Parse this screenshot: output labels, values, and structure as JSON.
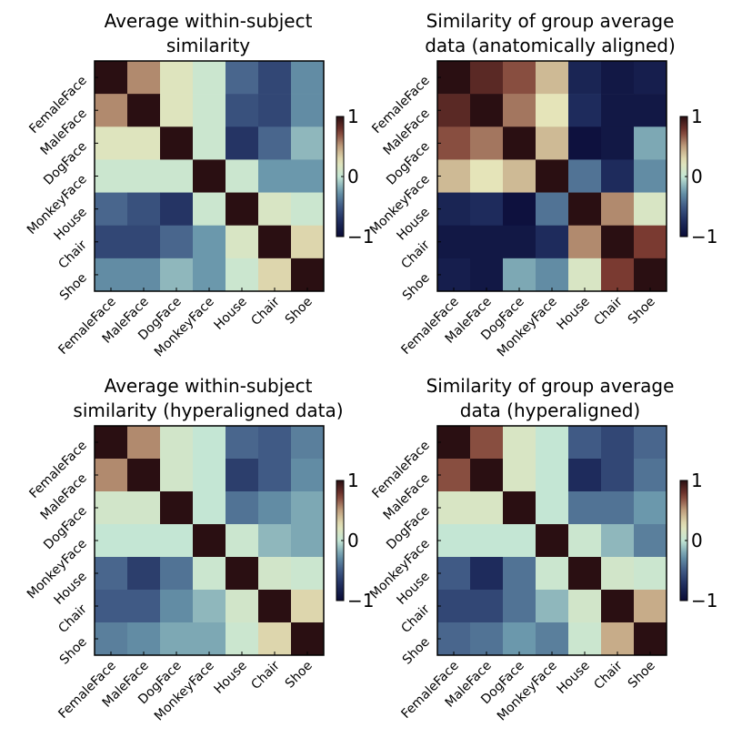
{
  "chart_data": [
    {
      "type": "heatmap",
      "title": [
        "Average within-subject",
        "similarity"
      ],
      "rows": [
        "FemaleFace",
        "MaleFace",
        "DogFace",
        "MonkeyFace",
        "House",
        "Chair",
        "Shoe"
      ],
      "cols": [
        "FemaleFace",
        "MaleFace",
        "DogFace",
        "MonkeyFace",
        "House",
        "Chair",
        "Shoe"
      ],
      "values": [
        [
          1.0,
          0.55,
          0.2,
          0.05,
          -0.45,
          -0.6,
          -0.3
        ],
        [
          0.55,
          1.0,
          0.2,
          0.05,
          -0.55,
          -0.6,
          -0.3
        ],
        [
          0.2,
          0.2,
          1.0,
          0.05,
          -0.7,
          -0.45,
          -0.15
        ],
        [
          0.05,
          0.05,
          0.05,
          1.0,
          0.05,
          -0.25,
          -0.25
        ],
        [
          -0.45,
          -0.55,
          -0.7,
          0.05,
          1.0,
          0.15,
          0.05
        ],
        [
          -0.6,
          -0.6,
          -0.45,
          -0.25,
          0.15,
          1.0,
          0.3
        ],
        [
          -0.3,
          -0.3,
          -0.15,
          -0.25,
          0.05,
          0.3,
          1.0
        ]
      ],
      "colorbar": {
        "min": -1,
        "max": 1,
        "ticks": [
          "1",
          "0",
          "−1"
        ]
      }
    },
    {
      "type": "heatmap",
      "title": [
        "Similarity of group average",
        "data (anatomically aligned)"
      ],
      "rows": [
        "FemaleFace",
        "MaleFace",
        "DogFace",
        "MonkeyFace",
        "House",
        "Chair",
        "Shoe"
      ],
      "cols": [
        "FemaleFace",
        "MaleFace",
        "DogFace",
        "MonkeyFace",
        "House",
        "Chair",
        "Shoe"
      ],
      "values": [
        [
          1.0,
          0.85,
          0.7,
          0.4,
          -0.8,
          -0.9,
          -0.85
        ],
        [
          0.85,
          1.0,
          0.6,
          0.25,
          -0.75,
          -0.9,
          -0.9
        ],
        [
          0.7,
          0.6,
          1.0,
          0.4,
          -0.95,
          -0.9,
          -0.2
        ],
        [
          0.4,
          0.25,
          0.4,
          1.0,
          -0.4,
          -0.75,
          -0.3
        ],
        [
          -0.8,
          -0.75,
          -0.95,
          -0.4,
          1.0,
          0.55,
          0.15
        ],
        [
          -0.9,
          -0.9,
          -0.9,
          -0.75,
          0.55,
          1.0,
          0.75
        ],
        [
          -0.85,
          -0.9,
          -0.2,
          -0.3,
          0.15,
          0.75,
          1.0
        ]
      ],
      "colorbar": {
        "min": -1,
        "max": 1,
        "ticks": [
          "1",
          "0",
          "−1"
        ]
      }
    },
    {
      "type": "heatmap",
      "title": [
        "Average within-subject",
        "similarity (hyperaligned data)"
      ],
      "rows": [
        "FemaleFace",
        "MaleFace",
        "DogFace",
        "MonkeyFace",
        "House",
        "Chair",
        "Shoe"
      ],
      "cols": [
        "FemaleFace",
        "MaleFace",
        "DogFace",
        "MonkeyFace",
        "House",
        "Chair",
        "Shoe"
      ],
      "values": [
        [
          1.0,
          0.55,
          0.1,
          0.0,
          -0.45,
          -0.5,
          -0.35
        ],
        [
          0.55,
          1.0,
          0.1,
          0.0,
          -0.65,
          -0.5,
          -0.3
        ],
        [
          0.1,
          0.1,
          1.0,
          0.0,
          -0.4,
          -0.3,
          -0.2
        ],
        [
          0.0,
          0.0,
          0.0,
          1.0,
          0.05,
          -0.15,
          -0.2
        ],
        [
          -0.45,
          -0.65,
          -0.4,
          0.05,
          1.0,
          0.1,
          0.05
        ],
        [
          -0.5,
          -0.5,
          -0.3,
          -0.15,
          0.1,
          1.0,
          0.3
        ],
        [
          -0.35,
          -0.3,
          -0.2,
          -0.2,
          0.05,
          0.3,
          1.0
        ]
      ],
      "colorbar": {
        "min": -1,
        "max": 1,
        "ticks": [
          "1",
          "0",
          "−1"
        ]
      }
    },
    {
      "type": "heatmap",
      "title": [
        "Similarity of group average",
        "data (hyperaligned)"
      ],
      "rows": [
        "FemaleFace",
        "MaleFace",
        "DogFace",
        "MonkeyFace",
        "House",
        "Chair",
        "Shoe"
      ],
      "cols": [
        "FemaleFace",
        "MaleFace",
        "DogFace",
        "MonkeyFace",
        "House",
        "Chair",
        "Shoe"
      ],
      "values": [
        [
          1.0,
          0.7,
          0.15,
          0.0,
          -0.5,
          -0.6,
          -0.45
        ],
        [
          0.7,
          1.0,
          0.15,
          0.0,
          -0.75,
          -0.6,
          -0.4
        ],
        [
          0.15,
          0.15,
          1.0,
          0.0,
          -0.4,
          -0.4,
          -0.25
        ],
        [
          0.0,
          0.0,
          0.0,
          1.0,
          0.05,
          -0.15,
          -0.35
        ],
        [
          -0.5,
          -0.75,
          -0.4,
          0.05,
          1.0,
          0.1,
          0.05
        ],
        [
          -0.6,
          -0.6,
          -0.4,
          -0.15,
          0.1,
          1.0,
          0.45
        ],
        [
          -0.45,
          -0.4,
          -0.25,
          -0.35,
          0.05,
          0.45,
          1.0
        ]
      ],
      "colorbar": {
        "min": -1,
        "max": 1,
        "ticks": [
          "1",
          "0",
          "−1"
        ]
      }
    }
  ],
  "colormap": [
    {
      "v": -1.0,
      "c": "#0a0b36"
    },
    {
      "v": -0.75,
      "c": "#1e2b5c"
    },
    {
      "v": -0.5,
      "c": "#405a85"
    },
    {
      "v": -0.25,
      "c": "#6b98ac"
    },
    {
      "v": 0.0,
      "c": "#c4e6d4"
    },
    {
      "v": 0.25,
      "c": "#e5e4b9"
    },
    {
      "v": 0.5,
      "c": "#bf9e7d"
    },
    {
      "v": 0.75,
      "c": "#7a3a31"
    },
    {
      "v": 1.0,
      "c": "#2a0f12"
    }
  ]
}
